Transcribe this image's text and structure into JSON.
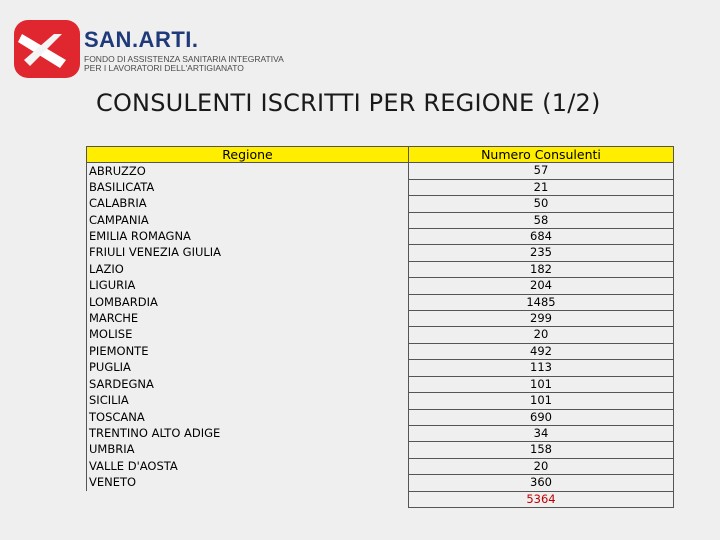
{
  "header": {
    "brand": "SAN.ARTI.",
    "subtitle_line1": "FONDO DI ASSISTENZA SANITARIA INTEGRATIVA",
    "subtitle_line2": "PER I LAVORATORI DELL'ARTIGIANATO",
    "logo_colors": {
      "red": "#e0262e",
      "blue": "#1f3a7a"
    }
  },
  "title": "CONSULENTI ISCRITTI PER REGIONE (1/2)",
  "table": {
    "col_region": "Regione",
    "col_count": "Numero Consulenti",
    "rows": [
      {
        "region": "ABRUZZO",
        "count": "57"
      },
      {
        "region": "BASILICATA",
        "count": "21"
      },
      {
        "region": "CALABRIA",
        "count": "50"
      },
      {
        "region": "CAMPANIA",
        "count": "58"
      },
      {
        "region": "EMILIA ROMAGNA",
        "count": "684"
      },
      {
        "region": "FRIULI VENEZIA GIULIA",
        "count": "235"
      },
      {
        "region": "LAZIO",
        "count": "182"
      },
      {
        "region": "LIGURIA",
        "count": "204"
      },
      {
        "region": "LOMBARDIA",
        "count": "1485"
      },
      {
        "region": "MARCHE",
        "count": "299"
      },
      {
        "region": "MOLISE",
        "count": "20"
      },
      {
        "region": "PIEMONTE",
        "count": "492"
      },
      {
        "region": "PUGLIA",
        "count": "113"
      },
      {
        "region": "SARDEGNA",
        "count": "101"
      },
      {
        "region": "SICILIA",
        "count": "101"
      },
      {
        "region": "TOSCANA",
        "count": "690"
      },
      {
        "region": "TRENTINO ALTO ADIGE",
        "count": "34"
      },
      {
        "region": "UMBRIA",
        "count": "158"
      },
      {
        "region": "VALLE D'AOSTA",
        "count": "20"
      },
      {
        "region": "VENETO",
        "count": "360"
      }
    ],
    "total": "5364"
  }
}
